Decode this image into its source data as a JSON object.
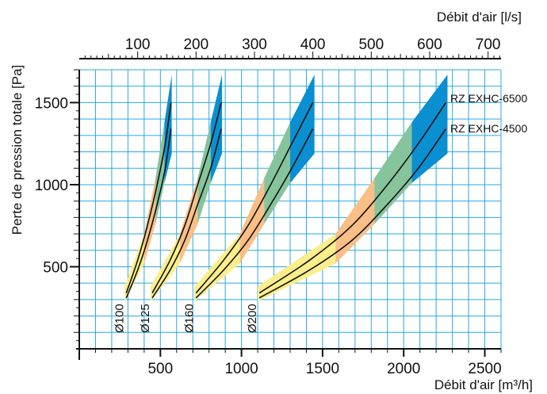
{
  "chart_data": {
    "type": "line",
    "xlabel_bottom": "Débit d'air [m³/h]",
    "xlabel_top": "Débit d'air [l/s]",
    "ylabel": "Perte de pression totale [Pa]",
    "x_bottom_range": [
      0,
      2600
    ],
    "x_top_range": [
      0,
      722.2
    ],
    "y_range": [
      0,
      1700
    ],
    "x_bottom_ticks": [
      500,
      1000,
      1500,
      2000,
      2500
    ],
    "x_top_ticks": [
      100,
      200,
      300,
      400,
      500,
      600,
      700
    ],
    "y_ticks": [
      500,
      1000,
      1500
    ],
    "grid": true,
    "series_names": [
      "RZ EXHC-6500",
      "RZ EXHC-4500"
    ],
    "groups": [
      {
        "label": "Ø100",
        "x": [
          290,
          360,
          420,
          480,
          530,
          565
        ],
        "rz6500": [
          340,
          540,
          750,
          1000,
          1250,
          1500
        ],
        "rz4500": [
          310,
          480,
          660,
          880,
          1100,
          1340
        ],
        "band_x": [
          280,
          400,
          470,
          525,
          570
        ],
        "band_low": [
          290,
          520,
          760,
          1010,
          1190
        ],
        "band_high": [
          380,
          700,
          1040,
          1380,
          1670
        ]
      },
      {
        "label": "Ø125",
        "x": [
          450,
          560,
          650,
          730,
          810,
          875
        ],
        "rz6500": [
          340,
          540,
          750,
          1000,
          1250,
          1500
        ],
        "rz4500": [
          310,
          480,
          660,
          880,
          1100,
          1340
        ],
        "band_x": [
          440,
          620,
          730,
          810,
          880
        ],
        "band_low": [
          290,
          520,
          760,
          1010,
          1190
        ],
        "band_high": [
          380,
          700,
          1040,
          1380,
          1670
        ]
      },
      {
        "label": "Ø160",
        "x": [
          720,
          890,
          1040,
          1180,
          1310,
          1440
        ],
        "rz6500": [
          340,
          540,
          750,
          1000,
          1250,
          1500
        ],
        "rz4500": [
          310,
          480,
          660,
          880,
          1100,
          1340
        ],
        "band_x": [
          710,
          990,
          1140,
          1300,
          1450
        ],
        "band_low": [
          290,
          520,
          760,
          1010,
          1190
        ],
        "band_high": [
          380,
          700,
          1040,
          1380,
          1670
        ]
      },
      {
        "label": "Ø200",
        "x": [
          1110,
          1420,
          1680,
          1900,
          2090,
          2260
        ],
        "rz6500": [
          340,
          540,
          750,
          1000,
          1250,
          1500
        ],
        "rz4500": [
          310,
          480,
          660,
          880,
          1100,
          1340
        ],
        "band_x": [
          1100,
          1580,
          1820,
          2050,
          2270
        ],
        "band_low": [
          290,
          520,
          760,
          1010,
          1190
        ],
        "band_high": [
          380,
          700,
          1040,
          1380,
          1670
        ]
      }
    ],
    "band_colors": [
      "#fbee8b",
      "#f9bf87",
      "#86c49b",
      "#0a8fd0"
    ]
  }
}
